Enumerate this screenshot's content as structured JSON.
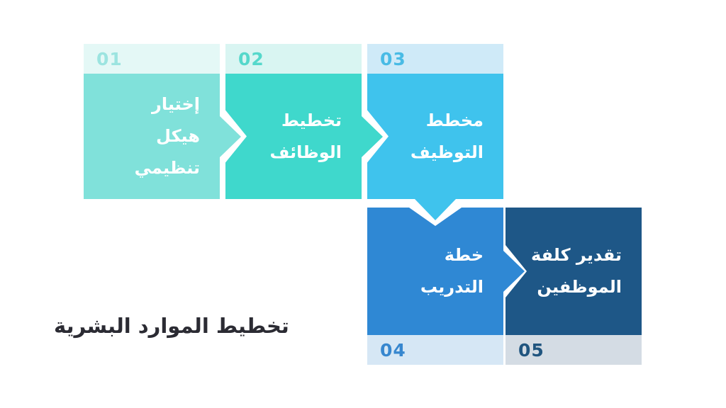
{
  "slide": {
    "title": "تخطيط الموارد البشرية",
    "title_color": "#2b2b33",
    "background": "#ffffff",
    "label_text_color": "#ffffff"
  },
  "steps": [
    {
      "number": "01",
      "label": "إختيار\nهيكل\nتنظيمي",
      "body_color": "#80e1da",
      "strip_color": "#e4f8f6",
      "number_color": "#9ce4e0"
    },
    {
      "number": "02",
      "label": "تخطيط\nالوظائف",
      "body_color": "#3fd8cc",
      "strip_color": "#d9f5f2",
      "number_color": "#55d8cb"
    },
    {
      "number": "03",
      "label": "مخطط\nالتوظيف",
      "body_color": "#3fc3ed",
      "strip_color": "#cfeaf8",
      "number_color": "#49bbe5"
    },
    {
      "number": "04",
      "label": "خطة\nالتدريب",
      "body_color": "#2f88d4",
      "strip_color": "#d6e7f5",
      "number_color": "#3787cf"
    },
    {
      "number": "05",
      "label": "تقدير كلفة\nالموظفين",
      "body_color": "#1e5787",
      "strip_color": "#d4dce4",
      "number_color": "#20557f"
    }
  ],
  "arrows": [
    {
      "from": "01",
      "to": "02",
      "direction": "right"
    },
    {
      "from": "02",
      "to": "03",
      "direction": "right"
    },
    {
      "from": "03",
      "to": "04",
      "direction": "down"
    },
    {
      "from": "04",
      "to": "05",
      "direction": "right"
    }
  ]
}
